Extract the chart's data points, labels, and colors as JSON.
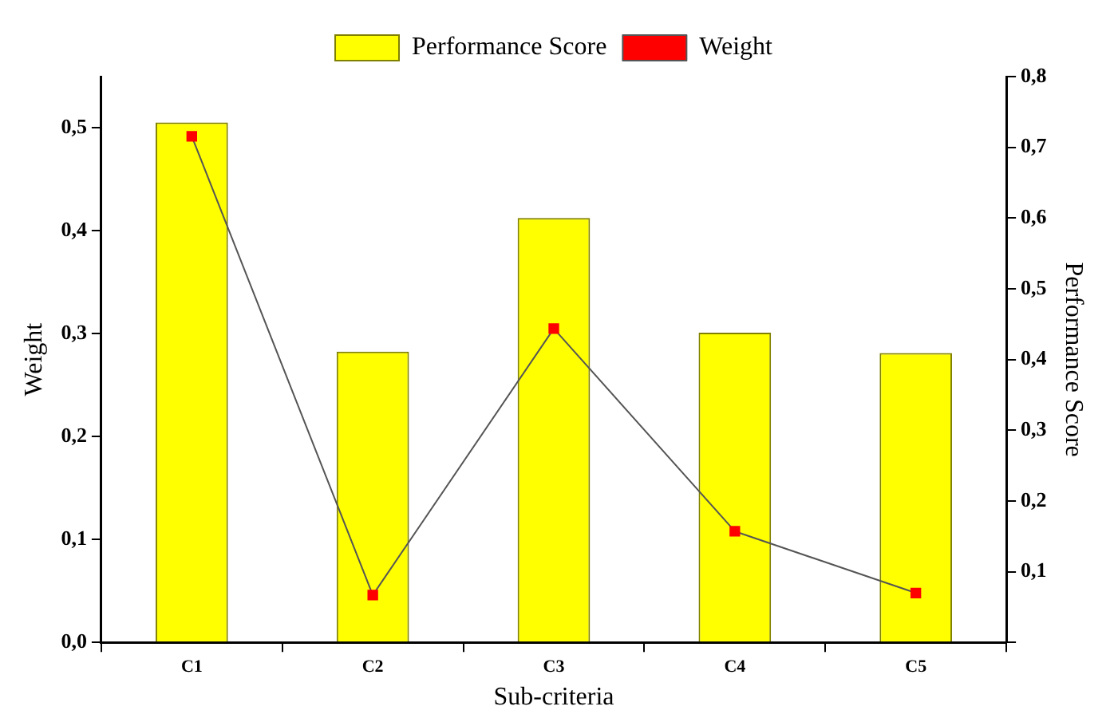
{
  "chart_data": {
    "type": "bar",
    "xlabel": "Sub-criteria",
    "ylabel": "Weight",
    "y2label": "Performance Score",
    "categories": [
      "C1",
      "C2",
      "C3",
      "C4",
      "C5"
    ],
    "series": [
      {
        "name": "Performance Score",
        "axis": "y2",
        "color": "#ffff00",
        "values": [
          0.735,
          0.411,
          0.6,
          0.438,
          0.409
        ]
      },
      {
        "name": "Weight",
        "type": "line",
        "axis": "y",
        "color": "#ff0000",
        "marker": "square",
        "values": [
          0.492,
          0.046,
          0.305,
          0.108,
          0.048
        ]
      }
    ],
    "ylim": [
      0,
      0.55
    ],
    "yticks": [
      {
        "value": 0,
        "label": "0,0"
      },
      {
        "value": 0.1,
        "label": "0,1"
      },
      {
        "value": 0.2,
        "label": "0,2"
      },
      {
        "value": 0.3,
        "label": "0,3"
      },
      {
        "value": 0.4,
        "label": "0,4"
      },
      {
        "value": 0.5,
        "label": "0,5"
      }
    ],
    "y2lim": [
      0,
      0.8
    ],
    "y2ticks": [
      {
        "value": 0,
        "label": null
      },
      {
        "value": 0.1,
        "label": "0,1"
      },
      {
        "value": 0.2,
        "label": "0,2"
      },
      {
        "value": 0.3,
        "label": "0,3"
      },
      {
        "value": 0.4,
        "label": "0,4"
      },
      {
        "value": 0.5,
        "label": "0,5"
      },
      {
        "value": 0.6,
        "label": "0,6"
      },
      {
        "value": 0.7,
        "label": "0,7"
      },
      {
        "value": 0.8,
        "label": "0,8"
      }
    ],
    "grid": false,
    "legend": "top"
  }
}
